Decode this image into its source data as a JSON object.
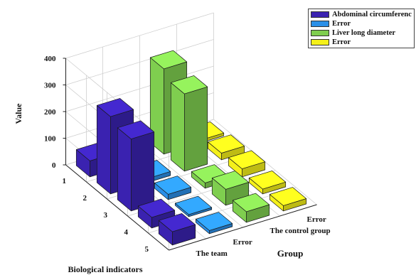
{
  "chart_data": {
    "type": "bar3d",
    "ylabel": "Value",
    "xlabel": "Biological indicators",
    "zlabel": "Group",
    "categories": [
      "1",
      "2",
      "3",
      "4",
      "5"
    ],
    "groups": [
      "The team",
      "Error",
      "The control group",
      "Error"
    ],
    "yticks": [
      0,
      100,
      200,
      300,
      400
    ],
    "ylim": [
      0,
      400
    ],
    "series": [
      {
        "name": "Abdominal circumferenc",
        "color": "#3a22b0",
        "values": [
          60,
          290,
          270,
          40,
          50
        ]
      },
      {
        "name": "Error",
        "color": "#2b8fe8",
        "values": [
          5,
          15,
          20,
          8,
          12
        ]
      },
      {
        "name": "Liver long diameter",
        "color": "#7fce4f",
        "values": [
          320,
          290,
          20,
          60,
          40
        ]
      },
      {
        "name": "Error",
        "color": "#f4f01a",
        "values": [
          10,
          25,
          30,
          18,
          20
        ]
      }
    ],
    "legend_position": "top-right",
    "grid": true
  }
}
